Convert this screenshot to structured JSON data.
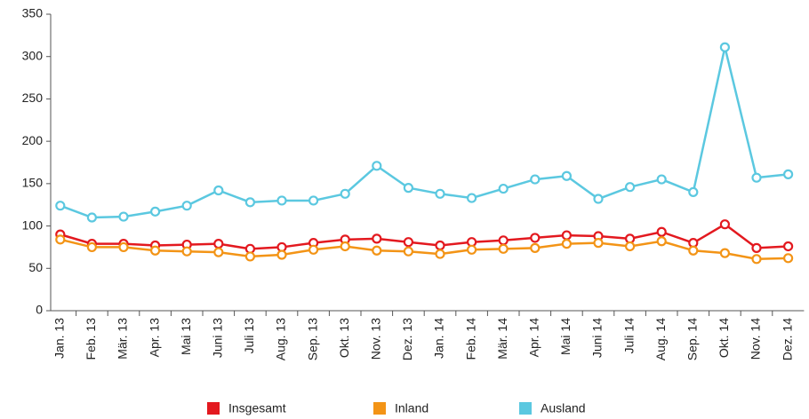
{
  "chart_data": {
    "type": "line",
    "categories": [
      "Jan. 13",
      "Feb. 13",
      "Mär. 13",
      "Apr. 13",
      "Mai 13",
      "Juni 13",
      "Juli 13",
      "Aug. 13",
      "Sep. 13",
      "Okt. 13",
      "Nov. 13",
      "Dez. 13",
      "Jan. 14",
      "Feb. 14",
      "Mär. 14",
      "Apr. 14",
      "Mai 14",
      "Juni 14",
      "Juli 14",
      "Aug. 14",
      "Sep. 14",
      "Okt. 14",
      "Nov. 14",
      "Dez. 14"
    ],
    "series": [
      {
        "name": "Insgesamt",
        "color": "#e3191f",
        "values": [
          90,
          79,
          79,
          77,
          78,
          79,
          73,
          75,
          80,
          84,
          85,
          81,
          77,
          81,
          83,
          86,
          89,
          88,
          85,
          93,
          80,
          102,
          74,
          76
        ]
      },
      {
        "name": "Inland",
        "color": "#f39416",
        "values": [
          84,
          75,
          75,
          71,
          70,
          69,
          64,
          66,
          72,
          76,
          71,
          70,
          67,
          72,
          73,
          74,
          79,
          80,
          76,
          82,
          71,
          68,
          61,
          62
        ]
      },
      {
        "name": "Ausland",
        "color": "#5bc8e0",
        "values": [
          124,
          110,
          111,
          117,
          124,
          142,
          128,
          130,
          130,
          138,
          171,
          145,
          138,
          133,
          144,
          155,
          159,
          132,
          146,
          155,
          140,
          311,
          157,
          161
        ]
      }
    ],
    "ylim": [
      0,
      350
    ],
    "yticks": [
      0,
      50,
      100,
      150,
      200,
      250,
      300,
      350
    ],
    "grid": false,
    "legend": "bottom"
  }
}
